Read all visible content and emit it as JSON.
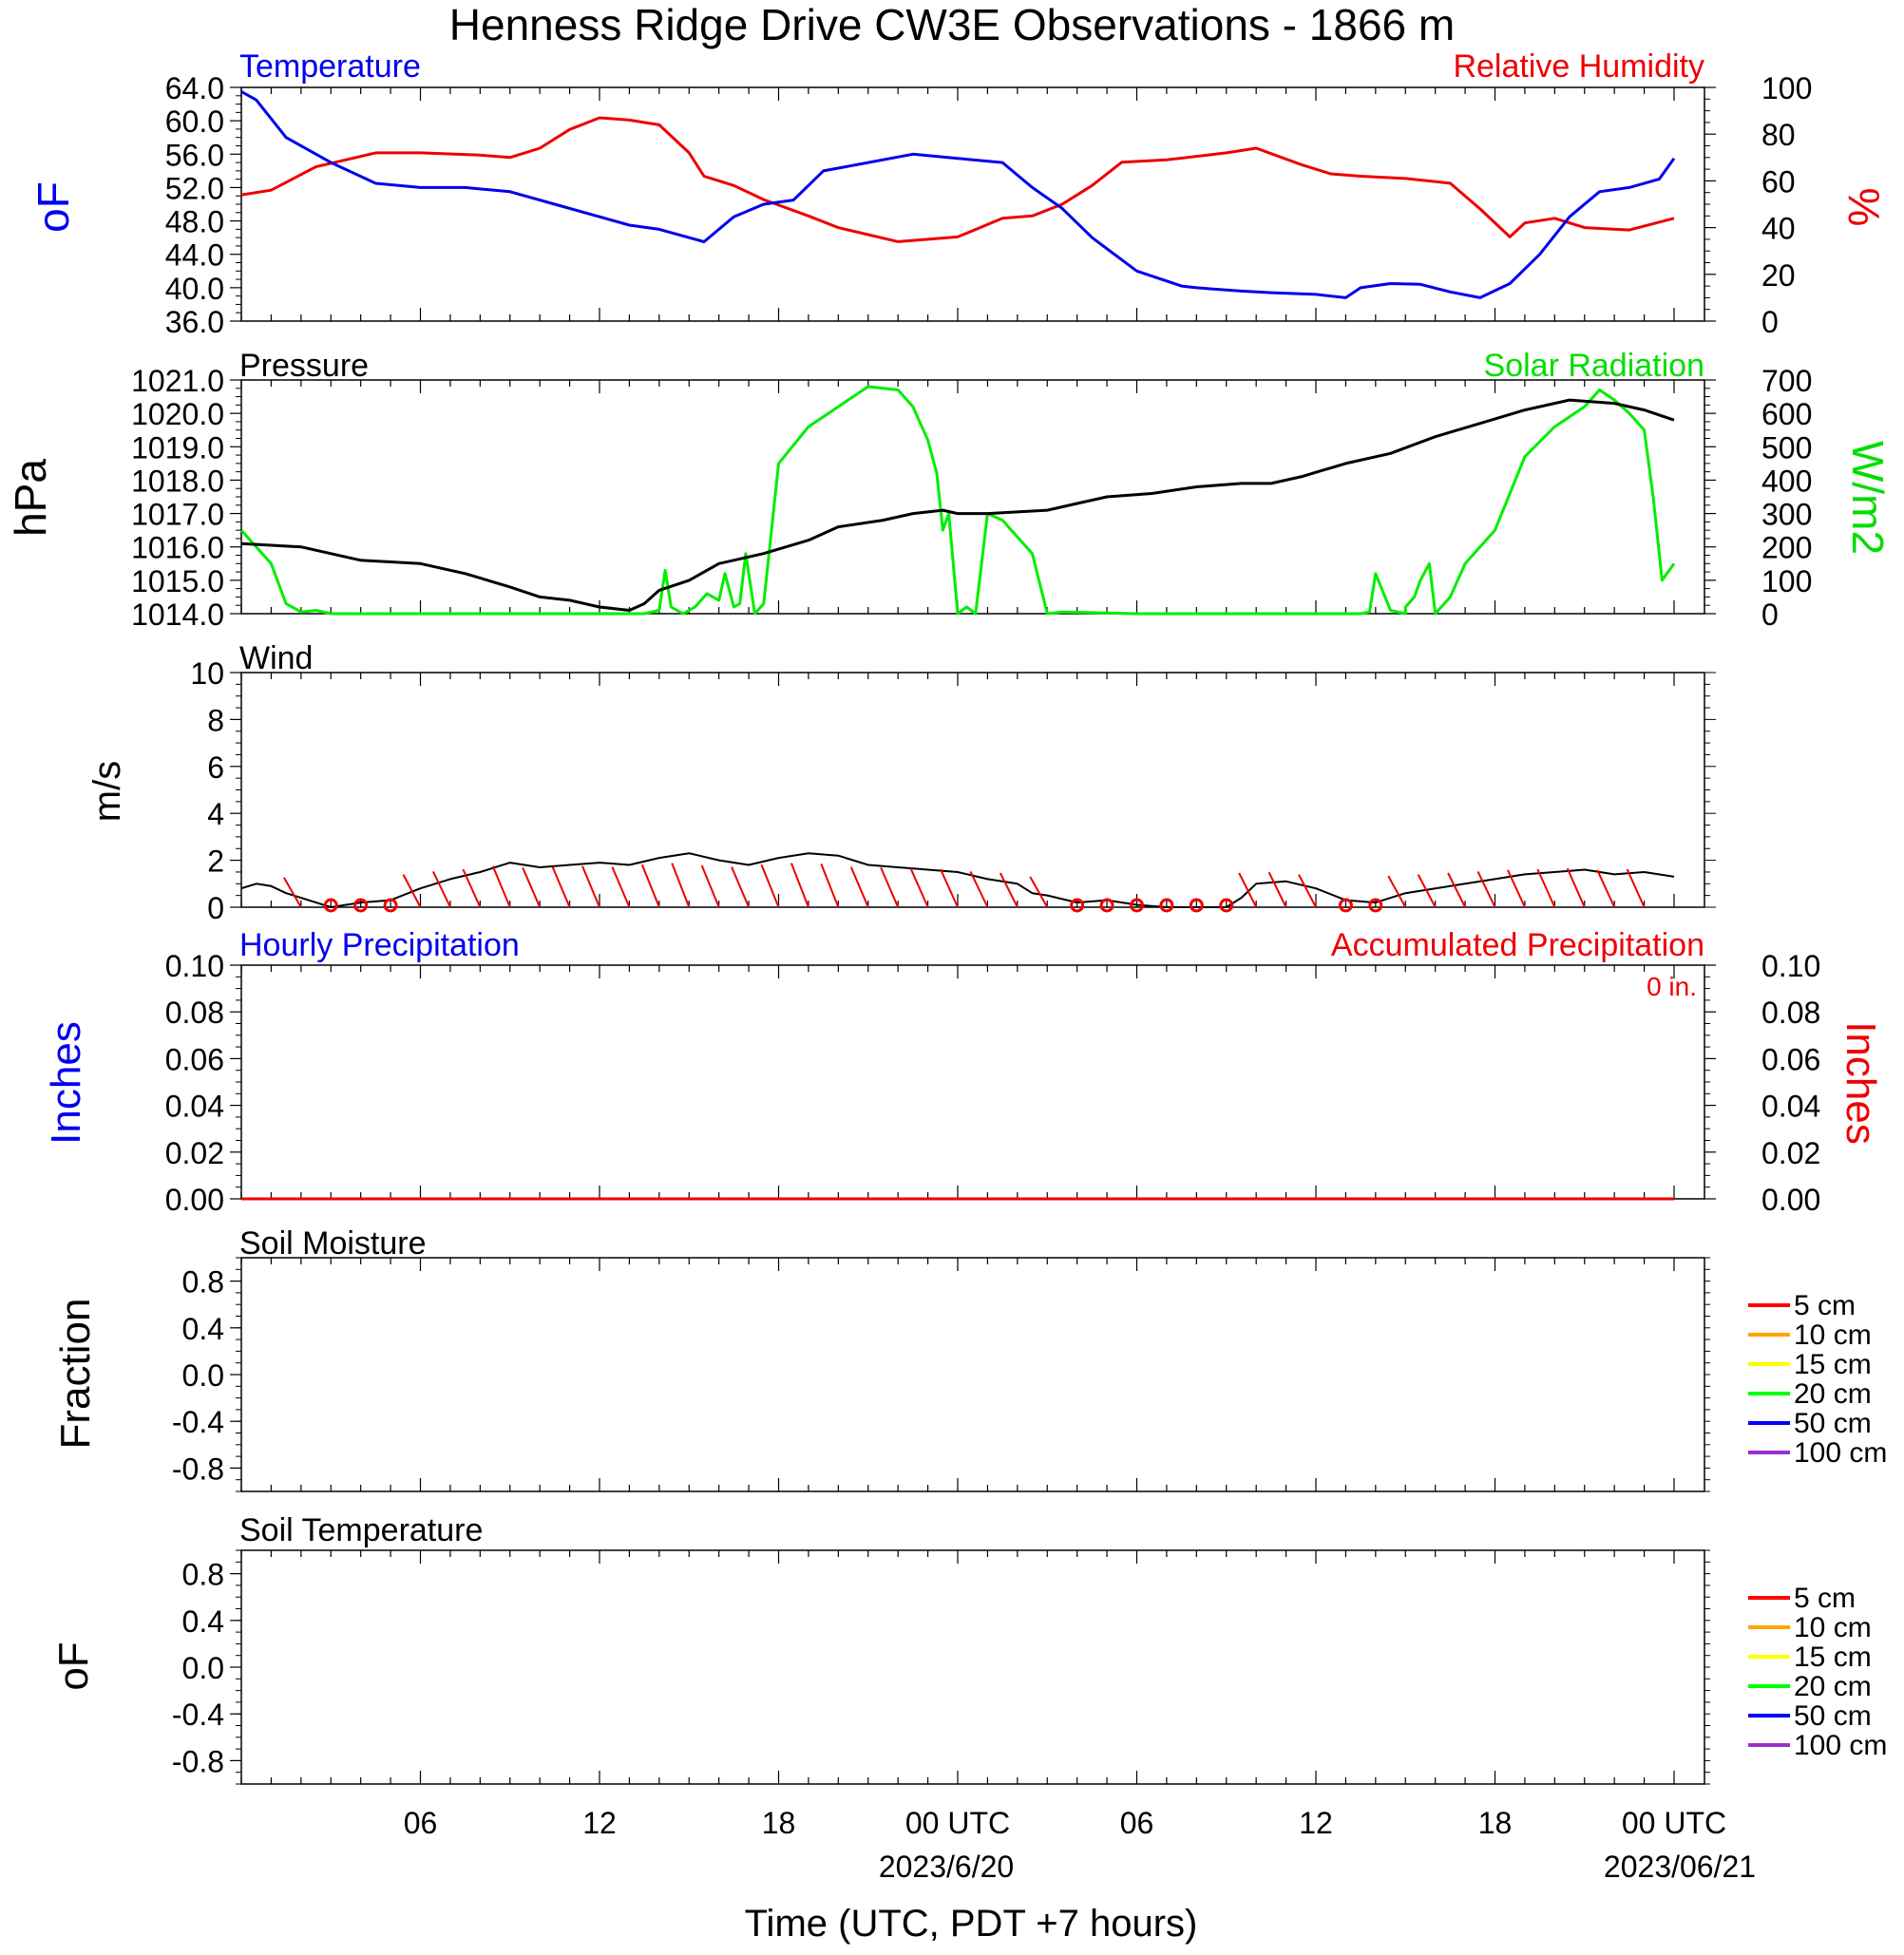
{
  "title": "Henness Ridge Drive CW3E Observations - 1866 m",
  "x_axis": {
    "label": "Time (UTC, PDT +7 hours)",
    "tick_labels": [
      "06",
      "12",
      "18",
      "00 UTC",
      "06",
      "12",
      "18",
      "00 UTC"
    ],
    "date_labels": [
      "2023/6/20",
      "2023/06/21"
    ]
  },
  "colors": {
    "temperature": "#0000ee",
    "humidity": "#ee0000",
    "pressure": "#000000",
    "solar": "#00ee00",
    "wind": "#000000",
    "wind_barb": "#ee0000",
    "hourly_precip": "#0000ee",
    "accum_precip": "#ee0000",
    "soil_5": "#ff0000",
    "soil_10": "#ffa500",
    "soil_15": "#ffff00",
    "soil_20": "#00ff00",
    "soil_50": "#0000ff",
    "soil_100": "#9932cc"
  },
  "panels": {
    "temp": {
      "left_title": "Temperature",
      "right_title": "Relative Humidity",
      "left_unit": "oF",
      "right_unit": "%",
      "left_ticks": [
        "64.0",
        "60.0",
        "56.0",
        "52.0",
        "48.0",
        "44.0",
        "40.0",
        "36.0"
      ],
      "right_ticks": [
        "100",
        "80",
        "60",
        "40",
        "20",
        "0"
      ]
    },
    "pressure": {
      "left_title": "Pressure",
      "right_title": "Solar Radiation",
      "left_unit": "hPa",
      "right_unit": "W/m2",
      "left_ticks": [
        "1021.0",
        "1020.0",
        "1019.0",
        "1018.0",
        "1017.0",
        "1016.0",
        "1015.0",
        "1014.0"
      ],
      "right_ticks": [
        "700",
        "600",
        "500",
        "400",
        "300",
        "200",
        "100",
        "0"
      ]
    },
    "wind": {
      "left_title": "Wind",
      "left_unit": "m/s",
      "left_ticks": [
        "10",
        "8",
        "6",
        "4",
        "2",
        "0"
      ]
    },
    "precip": {
      "left_title": "Hourly Precipitation",
      "right_title": "Accumulated Precipitation",
      "accum_total": "0 in.",
      "left_unit": "Inches",
      "right_unit": "Inches",
      "left_ticks": [
        "0.10",
        "0.08",
        "0.06",
        "0.04",
        "0.02",
        "0.00"
      ],
      "right_ticks": [
        "0.10",
        "0.08",
        "0.06",
        "0.04",
        "0.02",
        "0.00"
      ]
    },
    "soil_moist": {
      "left_title": "Soil Moisture",
      "left_unit": "Fraction",
      "left_ticks": [
        "0.8",
        "0.4",
        "0.0",
        "-0.4",
        "-0.8"
      ],
      "legend": [
        "5 cm",
        "10 cm",
        "15 cm",
        "20 cm",
        "50 cm",
        "100 cm"
      ]
    },
    "soil_temp": {
      "left_title": "Soil Temperature",
      "left_unit": "oF",
      "left_ticks": [
        "0.8",
        "0.4",
        "0.0",
        "-0.4",
        "-0.8"
      ],
      "legend": [
        "5 cm",
        "10 cm",
        "15 cm",
        "20 cm",
        "50 cm",
        "100 cm"
      ]
    }
  },
  "chart_data": [
    {
      "type": "line",
      "title": "Temperature / Relative Humidity",
      "x_units": "hours since 2023-06-19 00 UTC",
      "ylim_left": [
        36,
        64
      ],
      "ylim_right": [
        0,
        100
      ],
      "series": [
        {
          "name": "Temperature",
          "axis": "left",
          "x": [
            0,
            0.5,
            1.5,
            3,
            4.5,
            6,
            7.5,
            9,
            10.5,
            12,
            13,
            14,
            15.5,
            16.5,
            17.5,
            18.5,
            19.5,
            21,
            22.5,
            24,
            25.5,
            26.5,
            27.5,
            28.5,
            30,
            31.5,
            32,
            33.5,
            34.5,
            36,
            37,
            37.5,
            38.5,
            39.5,
            40.5,
            41.5,
            42.5,
            43.5,
            44.5,
            45.5,
            46.5,
            47.5,
            48
          ],
          "y": [
            63.5,
            62.5,
            58,
            55,
            52.5,
            52,
            52,
            51.5,
            50,
            48.5,
            47.5,
            47,
            45.5,
            48.5,
            50,
            50.5,
            54,
            55,
            56,
            55.5,
            55,
            52,
            49.5,
            46,
            42,
            40.2,
            40,
            39.6,
            39.4,
            39.2,
            38.8,
            40,
            40.5,
            40.4,
            39.5,
            38.8,
            40.5,
            44,
            48.5,
            51.5,
            52,
            53,
            55.5
          ]
        },
        {
          "name": "Relative Humidity",
          "axis": "right",
          "x": [
            0,
            1,
            2.5,
            4.5,
            6,
            8,
            9,
            10,
            11,
            12,
            13,
            14,
            15,
            15.5,
            16.5,
            17.5,
            19,
            20,
            21,
            22,
            23,
            24,
            25.5,
            26.5,
            27.5,
            28.5,
            29.5,
            31,
            33,
            34,
            35.5,
            36.5,
            37.5,
            39,
            40.5,
            41.5,
            42.5,
            43,
            44,
            45,
            46.5,
            48
          ],
          "y": [
            54,
            56,
            66,
            72,
            72,
            71,
            70,
            74,
            82,
            87,
            86,
            84,
            72,
            62,
            58,
            52,
            45,
            40,
            37,
            34,
            35,
            36,
            44,
            45,
            50,
            58,
            68,
            69,
            72,
            74,
            67,
            63,
            62,
            61,
            59,
            48,
            36,
            42,
            44,
            40,
            39,
            44
          ]
        }
      ]
    },
    {
      "type": "line",
      "title": "Pressure / Solar Radiation",
      "x_units": "hours since 2023-06-19 00 UTC",
      "ylim_left": [
        1014,
        1021
      ],
      "ylim_right": [
        0,
        700
      ],
      "series": [
        {
          "name": "Pressure",
          "axis": "left",
          "x": [
            0,
            2,
            4,
            6,
            7.5,
            9,
            10,
            11,
            12,
            13,
            13.5,
            14,
            15,
            16,
            17.5,
            19,
            20,
            21.5,
            22.5,
            23.5,
            24,
            25,
            27,
            28,
            29,
            30.5,
            32,
            33.5,
            34.5,
            35.5,
            37,
            38.5,
            40,
            41.5,
            43,
            44.5,
            46,
            47,
            48
          ],
          "y": [
            1016.1,
            1016.0,
            1015.6,
            1015.5,
            1015.2,
            1014.8,
            1014.5,
            1014.4,
            1014.2,
            1014.1,
            1014.3,
            1014.7,
            1015.0,
            1015.5,
            1015.8,
            1016.2,
            1016.6,
            1016.8,
            1017.0,
            1017.1,
            1017.0,
            1017.0,
            1017.1,
            1017.3,
            1017.5,
            1017.6,
            1017.8,
            1017.9,
            1017.9,
            1018.1,
            1018.5,
            1018.8,
            1019.3,
            1019.7,
            1020.1,
            1020.4,
            1020.3,
            1020.1,
            1019.8
          ]
        },
        {
          "name": "Solar Radiation",
          "axis": "right",
          "x": [
            0,
            0.5,
            1,
            1.5,
            2,
            2.5,
            3,
            5,
            8,
            12,
            13.5,
            14,
            14.2,
            14.4,
            14.8,
            15.2,
            15.6,
            16,
            16.2,
            16.5,
            16.7,
            16.9,
            17.2,
            17.5,
            18,
            19,
            20,
            21,
            22,
            22.5,
            23,
            23.3,
            23.5,
            23.7,
            24,
            24.3,
            24.6,
            25,
            25.5,
            26.5,
            27,
            27.5,
            30,
            33,
            36,
            37,
            37.5,
            37.8,
            38,
            38.5,
            39,
            39,
            39.3,
            39.5,
            39.8,
            40,
            40.5,
            41,
            42,
            43,
            44,
            45,
            45.5,
            46,
            46.5,
            47,
            47.3,
            47.6,
            48
          ],
          "y": [
            250,
            200,
            150,
            30,
            5,
            10,
            0,
            0,
            0,
            0,
            0,
            10,
            130,
            20,
            0,
            20,
            60,
            40,
            120,
            20,
            30,
            180,
            0,
            30,
            450,
            560,
            620,
            680,
            670,
            620,
            520,
            420,
            250,
            300,
            0,
            20,
            0,
            300,
            280,
            180,
            0,
            5,
            0,
            0,
            0,
            0,
            0,
            5,
            120,
            10,
            0,
            20,
            50,
            100,
            150,
            0,
            50,
            150,
            250,
            470,
            560,
            620,
            670,
            640,
            600,
            550,
            350,
            100,
            150
          ]
        }
      ]
    },
    {
      "type": "line",
      "title": "Wind",
      "x_units": "hours since 2023-06-19 00 UTC",
      "ylim": [
        0,
        10
      ],
      "series": [
        {
          "name": "Wind",
          "x": [
            0,
            0.5,
            1,
            1.5,
            2,
            3,
            4,
            5,
            6,
            7,
            8,
            9,
            10,
            11,
            12,
            13,
            14,
            15,
            16,
            17,
            18,
            19,
            20,
            21,
            22,
            23,
            24,
            25,
            26,
            26.5,
            27,
            28,
            29,
            30,
            31,
            32,
            33,
            33.5,
            34,
            35,
            36,
            37,
            38,
            39,
            40,
            41,
            42,
            43,
            44,
            45,
            46,
            47,
            48
          ],
          "y": [
            0.8,
            1.0,
            0.9,
            0.6,
            0.4,
            0.0,
            0.2,
            0.3,
            0.8,
            1.2,
            1.5,
            1.9,
            1.7,
            1.8,
            1.9,
            1.8,
            2.1,
            2.3,
            2.0,
            1.8,
            2.1,
            2.3,
            2.2,
            1.8,
            1.7,
            1.6,
            1.5,
            1.2,
            1.0,
            0.6,
            0.5,
            0.2,
            0.3,
            0.1,
            0.0,
            0.0,
            0.0,
            0.4,
            1.0,
            1.1,
            0.8,
            0.3,
            0.2,
            0.6,
            0.8,
            1.0,
            1.2,
            1.4,
            1.5,
            1.6,
            1.4,
            1.5,
            1.3
          ]
        }
      ]
    },
    {
      "type": "line",
      "title": "Hourly Precipitation / Accumulated Precipitation",
      "ylim_left": [
        0,
        0.1
      ],
      "ylim_right": [
        0,
        0.1
      ],
      "series": [
        {
          "name": "Hourly Precipitation",
          "x": [
            0,
            48
          ],
          "y": [
            0,
            0
          ]
        },
        {
          "name": "Accumulated Precipitation",
          "x": [
            0,
            48
          ],
          "y": [
            0,
            0
          ]
        }
      ]
    },
    {
      "type": "line",
      "title": "Soil Moisture",
      "ylim": [
        -1,
        1
      ],
      "series": []
    },
    {
      "type": "line",
      "title": "Soil Temperature",
      "ylim": [
        -1,
        1
      ],
      "series": []
    }
  ]
}
